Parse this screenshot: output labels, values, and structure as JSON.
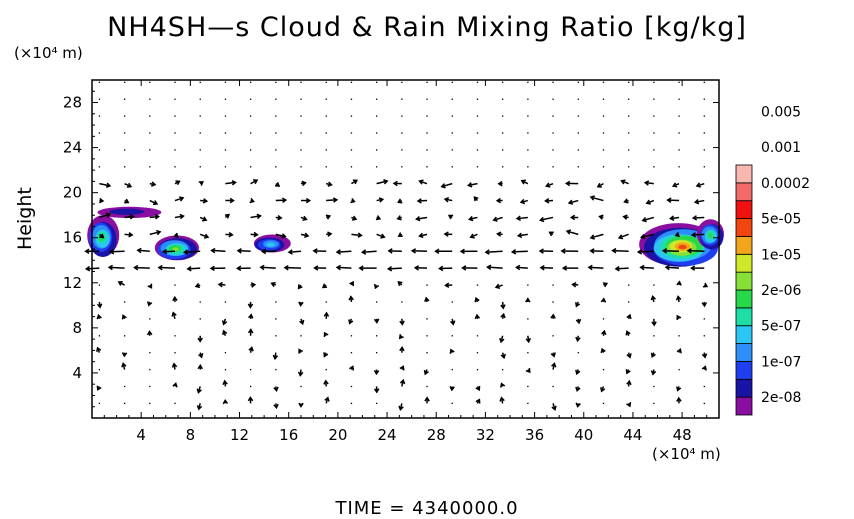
{
  "title": "NH4SH—s Cloud & Rain Mixing Ratio [kg/kg]",
  "time_label": "TIME  =  4340000.0",
  "colors": {
    "legend": [
      "#8a0ea0",
      "#1a14a6",
      "#1f3ef0",
      "#2e8ef8",
      "#2cc6f2",
      "#1ddfa6",
      "#27d84a",
      "#86e035",
      "#cfe82a",
      "#f3a51c",
      "#f24610",
      "#f01010",
      "#f26a6a",
      "#f8b8b0"
    ],
    "arrow": "#000000",
    "dot": "#000000"
  },
  "chart_data": {
    "type": "contour-with-vectors",
    "title": "NH4SH—s Cloud & Rain Mixing Ratio [kg/kg]",
    "xlabel": "",
    "ylabel": "Height",
    "x_unit_label": "(×10⁴ m)",
    "y_unit_label": "(×10⁴ m)",
    "xlim": [
      0,
      51
    ],
    "ylim": [
      0,
      30
    ],
    "x_ticks": [
      4,
      8,
      12,
      16,
      20,
      24,
      28,
      32,
      36,
      40,
      44,
      48
    ],
    "y_ticks": [
      4,
      8,
      12,
      16,
      20,
      24,
      28
    ],
    "legend_levels": [
      "2e-08",
      "1e-07",
      "5e-07",
      "2e-06",
      "1e-05",
      "5e-05",
      "0.0002",
      "0.001",
      "0.005"
    ],
    "time": "4340000.0",
    "cloud_regions": [
      {
        "x": 0.8,
        "y": 16.0,
        "rx": 1.3,
        "ry": 1.8,
        "peak_level": 6
      },
      {
        "x": 3.0,
        "y": 18.3,
        "rx": 2.6,
        "ry": 0.5,
        "peak_level": 1
      },
      {
        "x": 6.8,
        "y": 15.0,
        "rx": 1.8,
        "ry": 1.1,
        "peak_level": 7
      },
      {
        "x": 14.5,
        "y": 15.4,
        "rx": 1.5,
        "ry": 0.8,
        "peak_level": 4
      },
      {
        "x": 48.0,
        "y": 15.2,
        "rx": 3.2,
        "ry": 1.9,
        "peak_level": 10
      },
      {
        "x": 50.3,
        "y": 16.2,
        "rx": 1.1,
        "ry": 1.3,
        "peak_level": 6
      }
    ]
  }
}
